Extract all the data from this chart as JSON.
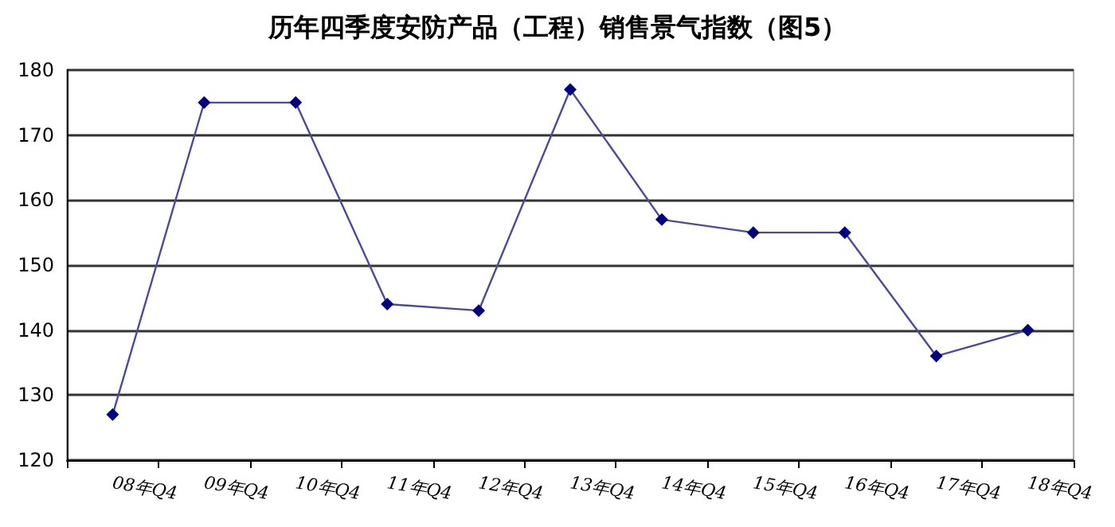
{
  "chart_data": {
    "type": "line",
    "title": "历年四季度安防产品（工程）销售景气指数（图5）",
    "categories": [
      "08年Q4",
      "09年Q4",
      "10年Q4",
      "11年Q4",
      "12年Q4",
      "13年Q4",
      "14年Q4",
      "15年Q4",
      "16年Q4",
      "17年Q4",
      "18年Q4"
    ],
    "series": [
      {
        "color": "#000080",
        "values": [
          127,
          175,
          175,
          144,
          143,
          177,
          157,
          155,
          155,
          136,
          140
        ]
      }
    ],
    "ylim": [
      120,
      180
    ],
    "yticks": [
      120,
      130,
      140,
      150,
      160,
      170,
      180
    ],
    "grid": "y",
    "marker": "diamond",
    "line_style": "solid"
  }
}
